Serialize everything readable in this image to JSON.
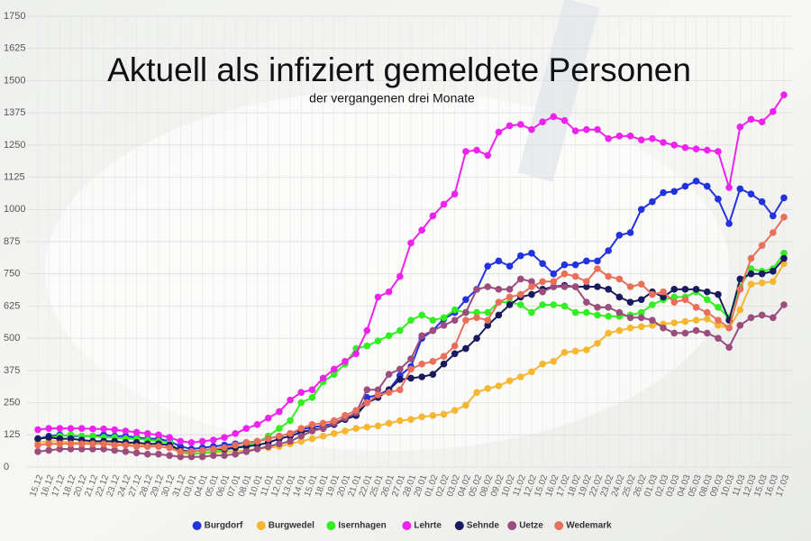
{
  "chart_data": {
    "type": "line",
    "title": "Aktuell als infiziert gemeldete Personen",
    "subtitle": "der vergangenen drei Monate",
    "categories": [
      "15.12",
      "16.12",
      "17.12",
      "18.12",
      "20.12",
      "21.12",
      "22.12",
      "23.12",
      "24.12",
      "27.12",
      "28.12",
      "29.12",
      "30.12",
      "31.12",
      "03.01",
      "04.01",
      "05.01",
      "06.01",
      "07.01",
      "08.01",
      "10.01",
      "11.01",
      "12.01",
      "13.01",
      "14.01",
      "15.01",
      "18.01",
      "19.01",
      "20.01",
      "21.01",
      "22.01",
      "25.01",
      "26.01",
      "27.01",
      "28.01",
      "29.01",
      "01.02",
      "02.02",
      "03.02",
      "04.02",
      "05.02",
      "08.02",
      "09.02",
      "10.02",
      "11.02",
      "12.02",
      "15.02",
      "16.02",
      "17.02",
      "18.02",
      "19.02",
      "22.02",
      "23.02",
      "24.02",
      "25.02",
      "26.02",
      "01.03",
      "02.03",
      "03.03",
      "04.03",
      "05.03",
      "08.03",
      "09.03",
      "10.03",
      "11.03",
      "12.03",
      "15.03",
      "16.03",
      "17.03"
    ],
    "series": [
      {
        "name": "Burgdorf",
        "color": "#2233dd",
        "values": [
          110,
          120,
          125,
          120,
          120,
          120,
          125,
          120,
          120,
          115,
          110,
          110,
          100,
          80,
          70,
          75,
          80,
          85,
          90,
          95,
          100,
          110,
          120,
          130,
          145,
          155,
          160,
          170,
          185,
          200,
          270,
          280,
          300,
          355,
          390,
          500,
          530,
          575,
          600,
          650,
          690,
          780,
          800,
          780,
          820,
          830,
          790,
          750,
          785,
          785,
          800,
          800,
          840,
          900,
          910,
          1000,
          1030,
          1065,
          1070,
          1090,
          1110,
          1090,
          1040,
          945,
          1080,
          1060,
          1030,
          975,
          1045
        ]
      },
      {
        "name": "Burgwedel",
        "color": "#f5b731",
        "values": [
          95,
          100,
          100,
          95,
          95,
          95,
          95,
          90,
          90,
          85,
          85,
          80,
          75,
          55,
          50,
          55,
          55,
          60,
          60,
          65,
          70,
          75,
          80,
          90,
          100,
          110,
          120,
          130,
          140,
          150,
          155,
          160,
          170,
          180,
          185,
          195,
          200,
          205,
          220,
          240,
          290,
          305,
          315,
          335,
          350,
          370,
          400,
          410,
          445,
          450,
          455,
          480,
          520,
          530,
          540,
          545,
          550,
          555,
          560,
          565,
          570,
          575,
          550,
          540,
          610,
          710,
          715,
          720,
          790
        ]
      },
      {
        "name": "Isernhagen",
        "color": "#33ee22",
        "values": [
          110,
          115,
          120,
          125,
          120,
          120,
          115,
          115,
          110,
          110,
          105,
          100,
          95,
          60,
          50,
          55,
          60,
          65,
          75,
          85,
          95,
          120,
          150,
          180,
          250,
          270,
          330,
          360,
          400,
          460,
          470,
          490,
          510,
          530,
          570,
          590,
          570,
          580,
          610,
          600,
          600,
          600,
          640,
          640,
          630,
          600,
          630,
          630,
          625,
          600,
          600,
          590,
          585,
          585,
          590,
          600,
          630,
          650,
          660,
          660,
          680,
          650,
          620,
          580,
          700,
          770,
          760,
          770,
          830
        ]
      },
      {
        "name": "Lehrte",
        "color": "#ee22ee",
        "values": [
          145,
          150,
          150,
          150,
          150,
          148,
          148,
          145,
          140,
          135,
          130,
          125,
          115,
          100,
          95,
          100,
          105,
          115,
          130,
          150,
          165,
          190,
          215,
          260,
          290,
          300,
          345,
          380,
          410,
          440,
          530,
          660,
          680,
          740,
          870,
          920,
          975,
          1020,
          1060,
          1225,
          1230,
          1210,
          1300,
          1325,
          1330,
          1310,
          1340,
          1360,
          1345,
          1305,
          1310,
          1310,
          1275,
          1285,
          1285,
          1270,
          1275,
          1260,
          1250,
          1240,
          1235,
          1230,
          1225,
          1085,
          1320,
          1350,
          1340,
          1380,
          1445
        ]
      },
      {
        "name": "Sehnde",
        "color": "#1a1a5e",
        "values": [
          110,
          115,
          110,
          110,
          105,
          100,
          100,
          100,
          95,
          95,
          90,
          90,
          85,
          65,
          60,
          65,
          70,
          70,
          75,
          80,
          85,
          95,
          110,
          120,
          135,
          145,
          150,
          165,
          185,
          200,
          250,
          270,
          300,
          340,
          345,
          350,
          360,
          400,
          440,
          460,
          500,
          550,
          590,
          630,
          660,
          670,
          690,
          700,
          705,
          700,
          700,
          700,
          690,
          660,
          640,
          650,
          680,
          660,
          690,
          690,
          690,
          680,
          670,
          570,
          730,
          750,
          750,
          760,
          810
        ]
      },
      {
        "name": "Uetze",
        "color": "#9b4d7d",
        "values": [
          60,
          65,
          70,
          70,
          70,
          70,
          70,
          65,
          60,
          55,
          50,
          50,
          45,
          40,
          40,
          40,
          45,
          45,
          50,
          60,
          70,
          80,
          90,
          100,
          120,
          140,
          150,
          170,
          190,
          210,
          300,
          300,
          360,
          380,
          420,
          510,
          530,
          550,
          570,
          600,
          690,
          700,
          690,
          690,
          730,
          720,
          680,
          700,
          700,
          700,
          640,
          620,
          620,
          600,
          580,
          580,
          570,
          540,
          520,
          520,
          530,
          520,
          500,
          465,
          550,
          580,
          590,
          580,
          630
        ]
      },
      {
        "name": "Wedemark",
        "color": "#e8705a",
        "values": [
          85,
          90,
          90,
          90,
          90,
          90,
          90,
          85,
          85,
          80,
          80,
          80,
          75,
          60,
          60,
          65,
          70,
          75,
          85,
          95,
          100,
          110,
          120,
          130,
          150,
          165,
          170,
          180,
          200,
          220,
          250,
          280,
          290,
          300,
          380,
          400,
          410,
          430,
          470,
          570,
          580,
          570,
          640,
          660,
          670,
          700,
          720,
          720,
          750,
          740,
          720,
          770,
          740,
          730,
          700,
          710,
          670,
          680,
          640,
          650,
          620,
          600,
          570,
          540,
          690,
          810,
          860,
          910,
          970
        ]
      }
    ],
    "ylim": [
      0,
      1750
    ],
    "yticks": [
      0,
      125,
      250,
      375,
      500,
      625,
      750,
      875,
      1000,
      1125,
      1250,
      1375,
      1500,
      1625,
      1750
    ],
    "grid": true,
    "legend": "bottom"
  }
}
